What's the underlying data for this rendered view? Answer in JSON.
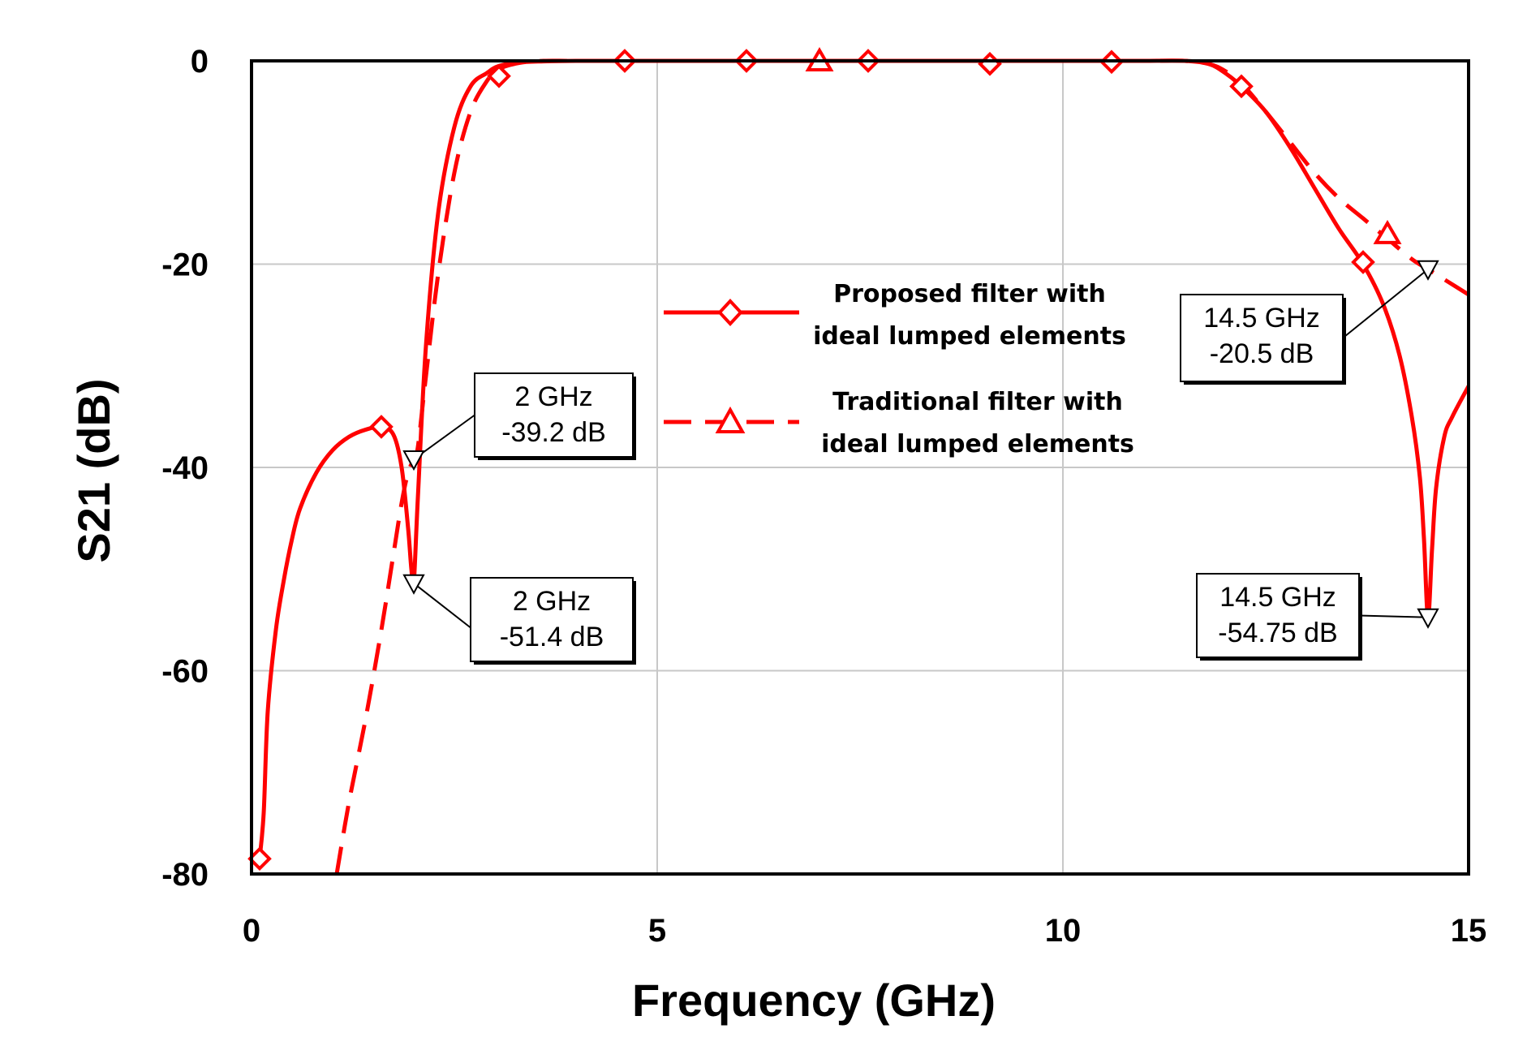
{
  "chart_data": {
    "type": "line",
    "title": "",
    "xlabel": "Frequency (GHz)",
    "ylabel": "S21 (dB)",
    "xlim": [
      0,
      15
    ],
    "ylim": [
      -80,
      0
    ],
    "xticks": [
      0,
      5,
      10,
      15
    ],
    "yticks": [
      0,
      -20,
      -40,
      -60,
      -80
    ],
    "xtick_labels": [
      "0",
      "5",
      "10",
      "15"
    ],
    "ytick_labels": [
      "0",
      "-20",
      "-40",
      "-60",
      "-80"
    ],
    "grid": true,
    "legend_position": "center",
    "colors": {
      "series": "#ff0000",
      "grid": "#c8c8c8",
      "axis": "#000000"
    },
    "series": [
      {
        "name": "Proposed filter with ideal lumped elements",
        "legend_lines": [
          "Proposed filter with",
          "ideal lumped elements"
        ],
        "style": "solid",
        "marker": "diamond",
        "x": [
          0.1,
          0.15,
          0.2,
          0.3,
          0.4,
          0.5,
          0.6,
          0.8,
          1.0,
          1.2,
          1.4,
          1.6,
          1.75,
          1.85,
          1.93,
          1.97,
          2.0,
          2.05,
          2.15,
          2.3,
          2.5,
          2.7,
          2.9,
          3.05,
          3.3,
          3.6,
          4.0,
          4.6,
          5.5,
          6.1,
          7.0,
          7.6,
          8.5,
          9.1,
          10.0,
          10.6,
          11.0,
          11.5,
          11.8,
          12.0,
          12.2,
          12.5,
          12.8,
          13.1,
          13.4,
          13.7,
          13.95,
          14.15,
          14.3,
          14.4,
          14.45,
          14.5,
          14.55,
          14.6,
          14.7,
          14.8,
          15.0
        ],
        "y": [
          -78.5,
          -74,
          -64,
          -56,
          -51,
          -47,
          -44,
          -40.5,
          -38.3,
          -37,
          -36.3,
          -36,
          -36.8,
          -40,
          -46,
          -50,
          -51.4,
          -43,
          -28,
          -15,
          -6.5,
          -2.5,
          -1.2,
          -0.5,
          -0.15,
          -0.05,
          0,
          0,
          0,
          0,
          0,
          0,
          0,
          0,
          0,
          0,
          0,
          0,
          -0.3,
          -1.2,
          -2.5,
          -5,
          -8.5,
          -12.5,
          -16.5,
          -20,
          -24,
          -29,
          -35,
          -41,
          -47,
          -54.75,
          -48,
          -42,
          -37,
          -35,
          -32
        ]
      },
      {
        "name": "Traditional filter with ideal lumped elements",
        "legend_lines": [
          "Traditional filter with",
          "ideal lumped elements"
        ],
        "style": "dashed",
        "marker": "triangle",
        "x": [
          1.05,
          1.2,
          1.4,
          1.6,
          1.75,
          1.85,
          1.93,
          2.0,
          2.05,
          2.15,
          2.3,
          2.5,
          2.7,
          2.9,
          3.05,
          3.3,
          3.6,
          4.0,
          5.0,
          6.0,
          7.0,
          8.0,
          9.0,
          10.0,
          11.0,
          11.5,
          11.8,
          12.0,
          12.2,
          12.5,
          12.8,
          13.1,
          13.4,
          13.7,
          14.0,
          14.3,
          14.5,
          14.7,
          15.0
        ],
        "y": [
          -80,
          -73,
          -65,
          -56,
          -48.5,
          -43.5,
          -40.5,
          -39.2,
          -38,
          -31,
          -21,
          -11,
          -5,
          -2,
          -0.8,
          -0.2,
          0,
          0,
          0,
          0,
          0,
          0,
          0,
          0,
          0,
          0,
          -0.3,
          -1,
          -2.2,
          -5,
          -8,
          -11,
          -13.5,
          -15.5,
          -17.5,
          -19.5,
          -20.5,
          -21.5,
          -23
        ]
      }
    ],
    "annotations": [
      {
        "x": 2.0,
        "y": -39.2,
        "lines": [
          "2 GHz",
          "-39.2 dB"
        ]
      },
      {
        "x": 2.0,
        "y": -51.4,
        "lines": [
          "2 GHz",
          "-51.4 dB"
        ]
      },
      {
        "x": 14.5,
        "y": -20.5,
        "lines": [
          "14.5 GHz",
          "-20.5 dB"
        ]
      },
      {
        "x": 14.5,
        "y": -54.75,
        "lines": [
          "14.5 GHz",
          "-54.75 dB"
        ]
      }
    ]
  }
}
